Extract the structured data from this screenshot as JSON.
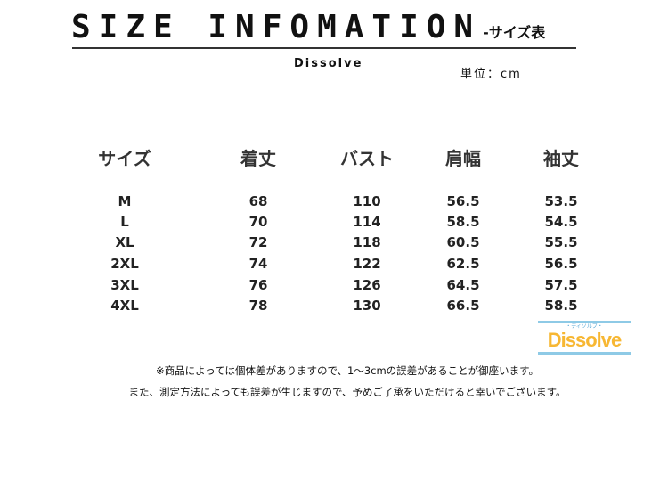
{
  "header": {
    "title": "SIZE INFOMATION",
    "subtitle": "-サイズ表",
    "brand": "Dissolve",
    "unit": "単位：cm"
  },
  "table": {
    "columns": [
      "サイズ",
      "着丈",
      "バスト",
      "肩幅",
      "袖丈"
    ],
    "rows": [
      [
        "M",
        "68",
        "110",
        "56.5",
        "53.5"
      ],
      [
        "L",
        "70",
        "114",
        "58.5",
        "54.5"
      ],
      [
        "XL",
        "72",
        "118",
        "60.5",
        "55.5"
      ],
      [
        "2XL",
        "74",
        "122",
        "62.5",
        "56.5"
      ],
      [
        "3XL",
        "76",
        "126",
        "64.5",
        "57.5"
      ],
      [
        "4XL",
        "78",
        "130",
        "66.5",
        "58.5"
      ]
    ]
  },
  "logo": {
    "word": "Dissolve",
    "sub": "・ディソルブ・",
    "color": "#f7b733",
    "bar_color": "#8ecae6"
  },
  "notes": [
    "※商品によっては個体差がありますので、1〜3cmの誤差があることが御座います。",
    "また、測定方法によっても誤差が生じますので、予めご了承をいただけると幸いでございます。"
  ]
}
